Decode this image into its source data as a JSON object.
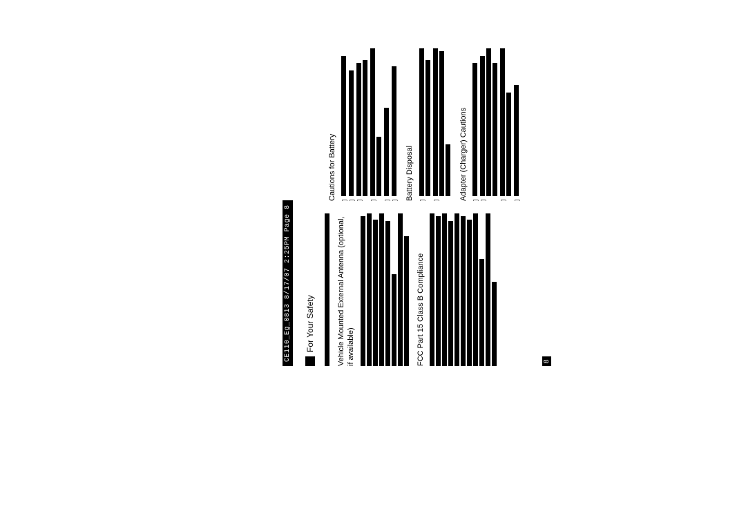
{
  "page": {
    "background_color": "#ffffff",
    "text_color": "#000000",
    "rotation_deg": -90
  },
  "header": {
    "text": "CE110_Eg_0813 8/17/07  2:25PM  Page 8",
    "background": "#000000",
    "foreground": "#ffffff",
    "font_family": "monospace",
    "font_size_pt": 7
  },
  "section": {
    "title": "For Your Safety",
    "title_font_size_pt": 9,
    "marker_box_color": "#000000"
  },
  "left_column": {
    "intro_para": {
      "line_widths_pct": [
        100
      ]
    },
    "heading1": "Vehicle Mounted External Antenna (optional, if available)",
    "block1_lines": [
      98,
      100,
      96,
      100,
      95,
      60,
      100,
      85
    ],
    "heading2": "FCC Part 15 Class B Compliance",
    "block2_lines": [
      100,
      98,
      100,
      95,
      100,
      98,
      96,
      100,
      70,
      100,
      55
    ]
  },
  "right_column": {
    "heading1": "Cautions for Battery",
    "bullets1": [
      {
        "lines": [
          95
        ]
      },
      {
        "lines": [
          85
        ]
      },
      {
        "lines": [
          90,
          92
        ]
      },
      {
        "lines": [
          100,
          40
        ]
      },
      {
        "lines": [
          60
        ]
      },
      {
        "lines": [
          88
        ]
      }
    ],
    "heading2": "Battery Disposal",
    "bullets2": [
      {
        "lines": [
          100,
          92
        ]
      },
      {
        "lines": [
          100,
          98,
          35
        ]
      }
    ],
    "heading3": "Adapter (Charger) Cautions",
    "bullets3": [
      {
        "lines": [
          90
        ]
      },
      {
        "lines": [
          95,
          100,
          90
        ]
      },
      {
        "lines": [
          100,
          70
        ]
      },
      {
        "lines": [
          75
        ]
      }
    ]
  },
  "page_number": {
    "value": "8",
    "background": "#000000",
    "foreground": "#ffffff"
  }
}
